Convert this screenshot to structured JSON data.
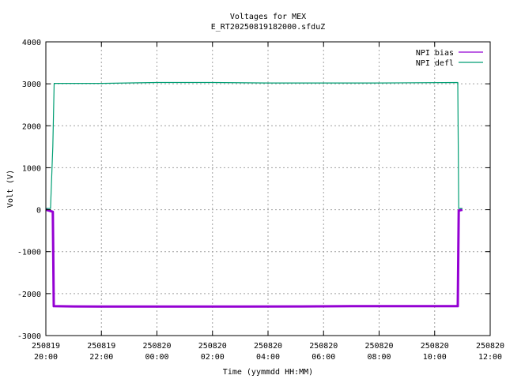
{
  "chart_data": {
    "type": "line",
    "title": "Voltages for MEX",
    "subtitle": "E_RT20250819182000.sfduZ",
    "xlabel": "Time (yymmdd HH:MM)",
    "ylabel": "Volt (V)",
    "ylim": [
      -3000,
      4000
    ],
    "yticks": [
      -3000,
      -2000,
      -1000,
      0,
      1000,
      2000,
      3000,
      4000
    ],
    "ytick_labels": [
      "-3000",
      "-2000",
      "-1000",
      "0",
      "1000",
      "2000",
      "3000",
      "4000"
    ],
    "xlim_hours": [
      20,
      36
    ],
    "xticks": [
      {
        "date": "250819",
        "time": "20:00"
      },
      {
        "date": "250819",
        "time": "22:00"
      },
      {
        "date": "250820",
        "time": "00:00"
      },
      {
        "date": "250820",
        "time": "02:00"
      },
      {
        "date": "250820",
        "time": "04:00"
      },
      {
        "date": "250820",
        "time": "06:00"
      },
      {
        "date": "250820",
        "time": "08:00"
      },
      {
        "date": "250820",
        "time": "10:00"
      },
      {
        "date": "250820",
        "time": "12:00"
      }
    ],
    "grid": true,
    "legend_position": "top-right",
    "series": [
      {
        "name": "NPI bias",
        "color": "#9400d3",
        "points": [
          [
            "250819 20:00",
            0
          ],
          [
            "250819 20:15",
            -50
          ],
          [
            "250819 20:17",
            -2300
          ],
          [
            "250819 21:00",
            -2305
          ],
          [
            "250819 23:00",
            -2310
          ],
          [
            "250820 01:00",
            -2310
          ],
          [
            "250820 03:00",
            -2310
          ],
          [
            "250820 05:00",
            -2305
          ],
          [
            "250820 07:00",
            -2300
          ],
          [
            "250820 09:00",
            -2300
          ],
          [
            "250820 10:50",
            -2300
          ],
          [
            "250820 10:52",
            -20
          ],
          [
            "250820 11:00",
            0
          ]
        ]
      },
      {
        "name": "NPI defl",
        "color": "#009e73",
        "points": [
          [
            "250819 20:00",
            30
          ],
          [
            "250819 20:10",
            30
          ],
          [
            "250819 20:15",
            1500
          ],
          [
            "250819 20:18",
            3010
          ],
          [
            "250819 22:00",
            3010
          ],
          [
            "250820 00:00",
            3030
          ],
          [
            "250820 02:00",
            3030
          ],
          [
            "250820 04:00",
            3020
          ],
          [
            "250820 06:00",
            3020
          ],
          [
            "250820 08:00",
            3020
          ],
          [
            "250820 10:50",
            3030
          ],
          [
            "250820 10:52",
            30
          ],
          [
            "250820 11:00",
            30
          ]
        ]
      }
    ]
  }
}
